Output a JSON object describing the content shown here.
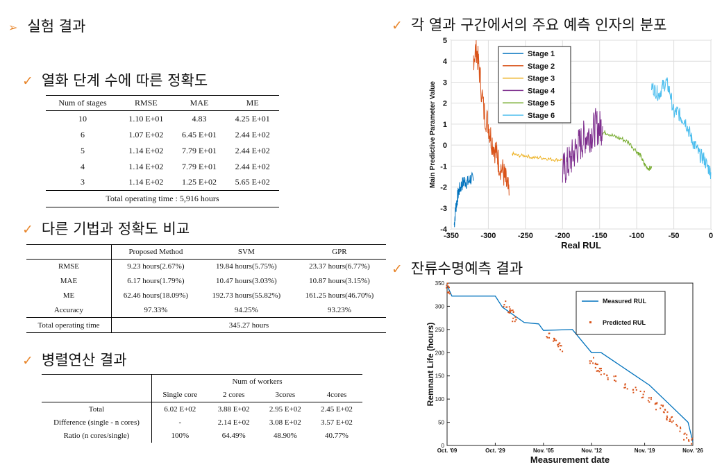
{
  "headings": {
    "main": "실험 결과",
    "accuracy": "열화 단계 수에 따른 정확도",
    "compare": "다른 기법과 정확도 비교",
    "parallel": "병렬연산 결과",
    "factor": "각 열과 구간에서의 주요 예측 인자의 분포",
    "rul": "잔류수명예측 결과"
  },
  "table1": {
    "headers": [
      "Num of stages",
      "RMSE",
      "MAE",
      "ME"
    ],
    "rows": [
      [
        "10",
        "1.10 E+01",
        "4.83",
        "4.25 E+01"
      ],
      [
        "6",
        "1.07 E+02",
        "6.45 E+01",
        "2.44 E+02"
      ],
      [
        "5",
        "1.14 E+02",
        "7.79 E+01",
        "2.44 E+02"
      ],
      [
        "4",
        "1.14 E+02",
        "7.79 E+01",
        "2.44 E+02"
      ],
      [
        "3",
        "1.14 E+02",
        "1.25 E+02",
        "5.65 E+02"
      ]
    ],
    "footer": "Total operating time : 5,916 hours"
  },
  "table2": {
    "headers": [
      "",
      "Proposed Method",
      "SVM",
      "GPR"
    ],
    "rows": [
      [
        "RMSE",
        "9.23 hours(2.67%)",
        "19.84 hours(5.75%)",
        "23.37 hours(6.77%)"
      ],
      [
        "MAE",
        "6.17 hours(1.79%)",
        "10.47 hours(3.03%)",
        "10.87 hours(3.15%)"
      ],
      [
        "ME",
        "62.46 hours(18.09%)",
        "192.73 hours(55.82%)",
        "161.25 hours(46.70%)"
      ],
      [
        "Accuracy",
        "97.33%",
        "94.25%",
        "93.23%"
      ]
    ],
    "footer_label": "Total operating time",
    "footer_value": "345.27 hours"
  },
  "table3": {
    "group_header": "Num of workers",
    "headers": [
      "",
      "Single core",
      "2 cores",
      "3cores",
      "4cores"
    ],
    "rows": [
      [
        "Total",
        "6.02 E+02",
        "3.88 E+02",
        "2.95 E+02",
        "2.45 E+02"
      ],
      [
        "Difference (single - n cores)",
        "-",
        "2.14 E+02",
        "3.08 E+02",
        "3.57 E+02"
      ],
      [
        "Ratio (n cores/single)",
        "100%",
        "64.49%",
        "48.90%",
        "40.77%"
      ]
    ]
  },
  "chart_data": [
    {
      "type": "line",
      "title": "",
      "xlabel": "Real RUL",
      "ylabel": "Main Predictive Parameter Value",
      "xlim": [
        -350,
        0
      ],
      "ylim": [
        -4,
        5
      ],
      "xticks": [
        "-350",
        "-300",
        "-250",
        "-200",
        "-150",
        "-100",
        "-50",
        "0"
      ],
      "yticks": [
        "5",
        "4",
        "3",
        "2",
        "1",
        "0",
        "-1",
        "-2",
        "-3",
        "-4"
      ],
      "grid": true,
      "legend_position": "top-left",
      "series": [
        {
          "name": "Stage 1",
          "color": "#0072BD",
          "x": [
            -346,
            -344,
            -342,
            -340,
            -336,
            -332,
            -328,
            -324,
            -320
          ],
          "y": [
            -3.8,
            -3.0,
            -2.6,
            -2.2,
            -1.9,
            -1.7,
            -1.8,
            -1.6,
            -1.7
          ]
        },
        {
          "name": "Stage 2",
          "color": "#D95319",
          "x": [
            -320,
            -316,
            -312,
            -306,
            -300,
            -296,
            -290,
            -286,
            -280,
            -276,
            -272
          ],
          "y": [
            4.2,
            4.6,
            3.5,
            1.6,
            1.0,
            0.3,
            -0.3,
            -0.8,
            -1.3,
            -1.8,
            -2.4
          ]
        },
        {
          "name": "Stage 3",
          "color": "#EDB120",
          "x": [
            -268,
            -260,
            -250,
            -240,
            -230,
            -220,
            -210,
            -200
          ],
          "y": [
            -0.4,
            -0.5,
            -0.5,
            -0.6,
            -0.6,
            -0.65,
            -0.7,
            -0.7
          ]
        },
        {
          "name": "Stage 4",
          "color": "#7E2F8E",
          "x": [
            -200,
            -195,
            -190,
            -185,
            -180,
            -175,
            -170,
            -165,
            -160,
            -155,
            -150,
            -146
          ],
          "y": [
            -1.3,
            -1.0,
            -0.8,
            -0.4,
            -0.1,
            0.1,
            0.4,
            0.5,
            0.6,
            0.9,
            0.8,
            0.9
          ]
        },
        {
          "name": "Stage 5",
          "color": "#77AC30",
          "x": [
            -146,
            -140,
            -130,
            -120,
            -110,
            -100,
            -95,
            -90,
            -85,
            -80
          ],
          "y": [
            0.6,
            0.6,
            0.4,
            0.3,
            0.1,
            -0.3,
            -0.5,
            -0.9,
            -1.1,
            -1.1
          ]
        },
        {
          "name": "Stage 6",
          "color": "#4DBEEE",
          "x": [
            -80,
            -75,
            -70,
            -65,
            -60,
            -55,
            -50,
            -45,
            -40,
            -35,
            -30,
            -25,
            -20,
            -15,
            -10,
            -5,
            0
          ],
          "y": [
            2.8,
            2.6,
            2.4,
            2.8,
            3.0,
            2.5,
            1.5,
            1.6,
            1.3,
            1.2,
            0.7,
            0.2,
            -0.1,
            -0.5,
            -0.6,
            -1.0,
            -1.3
          ]
        }
      ]
    },
    {
      "type": "scatter",
      "title": "",
      "xlabel": "Measurement date",
      "ylabel": "Remnant Life (hours)",
      "xticks": [
        "Oct. '09",
        "Oct. '29",
        "Nov. '05",
        "Nov. '12",
        "Nov. '19",
        "Nov. '26"
      ],
      "ylim": [
        0,
        350
      ],
      "yticks": [
        "350",
        "300",
        "250",
        "200",
        "150",
        "100",
        "50",
        "0"
      ],
      "grid": false,
      "legend_position": "top-right",
      "series": [
        {
          "name": "Measured RUL",
          "color": "#0072BD",
          "x": [
            0,
            0.1,
            1.0,
            1.15,
            1.6,
            1.9,
            2.0,
            2.6,
            3.0,
            3.2,
            3.8,
            4.2,
            4.6,
            5.0,
            5.1
          ],
          "y": [
            345,
            322,
            322,
            298,
            265,
            262,
            248,
            250,
            200,
            200,
            158,
            130,
            90,
            50,
            8
          ]
        },
        {
          "name": "Predicted RUL",
          "color": "#D95319",
          "x": [
            0.02,
            0.05,
            1.2,
            1.3,
            1.35,
            1.4,
            2.1,
            2.2,
            2.3,
            2.35,
            3.0,
            3.1,
            3.15,
            3.2,
            3.3,
            3.5,
            3.7,
            3.9,
            4.05,
            4.2,
            4.35,
            4.45,
            4.55,
            4.6,
            4.65,
            4.8,
            4.95,
            5.05
          ],
          "y": [
            343,
            335,
            305,
            292,
            284,
            270,
            238,
            230,
            222,
            208,
            185,
            175,
            165,
            158,
            148,
            143,
            130,
            118,
            110,
            98,
            85,
            80,
            70,
            60,
            55,
            38,
            20,
            8
          ]
        }
      ]
    }
  ]
}
